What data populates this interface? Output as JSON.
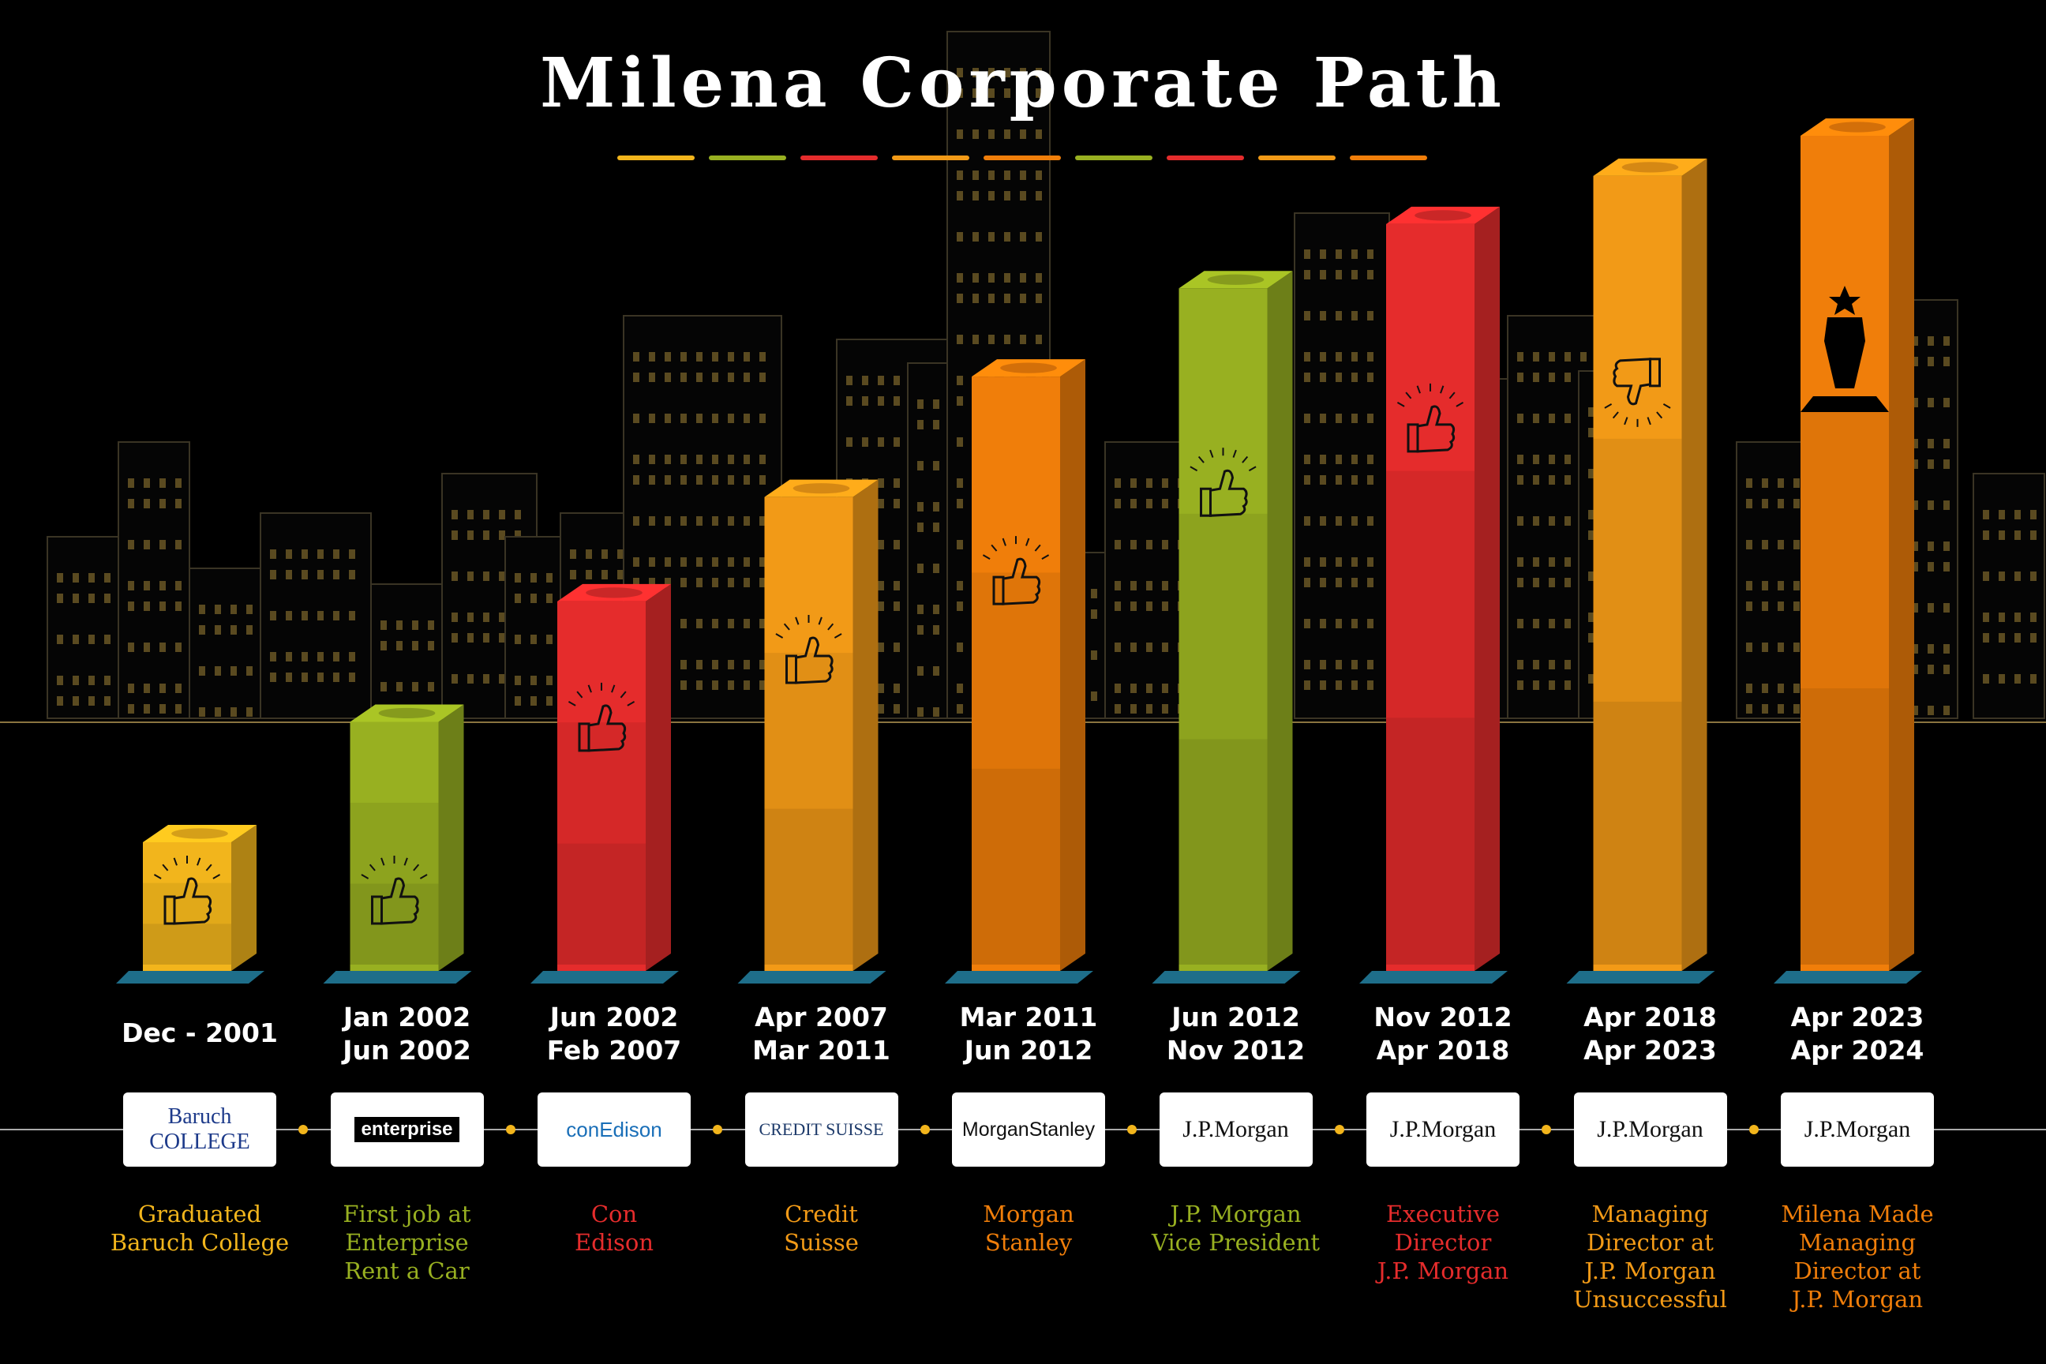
{
  "title": "Milena Corporate Path",
  "underline_colors": [
    "#f2b51c",
    "#98b021",
    "#e52c2c",
    "#f29a17",
    "#f07e0a",
    "#98b021",
    "#e52c2c",
    "#f29a17",
    "#f07e0a"
  ],
  "steps": [
    {
      "date1": "Dec - 2001",
      "date2": "",
      "logo": "Baruch COLLEGE",
      "caption": "Graduated\nBaruch College",
      "color": "#f2b51c",
      "icon": "thumbs-up-icon",
      "height": 0.12
    },
    {
      "date1": "Jan 2002",
      "date2": "Jun 2002",
      "logo": "enterprise",
      "caption": "First job at\nEnterprise\nRent a Car",
      "color": "#98b021",
      "icon": "thumbs-up-icon",
      "height": 0.27
    },
    {
      "date1": "Jun 2002",
      "date2": "Feb 2007",
      "logo": "conEdison",
      "caption": "Con\nEdison",
      "color": "#e52c2c",
      "icon": "thumbs-up-icon",
      "height": 0.42
    },
    {
      "date1": "Apr 2007",
      "date2": "Mar 2011",
      "logo": "CREDIT SUISSE",
      "caption": "Credit\nSuisse",
      "color": "#f29a17",
      "icon": "thumbs-up-icon",
      "height": 0.55
    },
    {
      "date1": "Mar 2011",
      "date2": "Jun 2012",
      "logo": "MorganStanley",
      "caption": "Morgan\nStanley",
      "color": "#f07e0a",
      "icon": "thumbs-up-icon",
      "height": 0.7
    },
    {
      "date1": "Jun 2012",
      "date2": "Nov 2012",
      "logo": "J.P.Morgan",
      "caption": "J.P. Morgan\nVice President",
      "color": "#98b021",
      "icon": "thumbs-up-icon",
      "height": 0.81
    },
    {
      "date1": "Nov 2012",
      "date2": "Apr 2018",
      "logo": "J.P.Morgan",
      "caption": "Executive\nDirector\nJ.P. Morgan",
      "color": "#e52c2c",
      "icon": "thumbs-up-icon",
      "height": 0.89
    },
    {
      "date1": "Apr 2018",
      "date2": "Apr 2023",
      "logo": "J.P.Morgan",
      "caption": "Managing\nDirector at\nJ.P. Morgan\nUnsuccessful",
      "color": "#f29a17",
      "icon": "thumbs-down-icon",
      "height": 0.95
    },
    {
      "date1": "Apr 2023",
      "date2": "Apr 2024",
      "logo": "J.P.Morgan",
      "caption": "Milena Made\nManaging\nDirector at\nJ.P. Morgan",
      "color": "#f07e0a",
      "icon": "trophy-icon",
      "height": 1.0
    }
  ]
}
